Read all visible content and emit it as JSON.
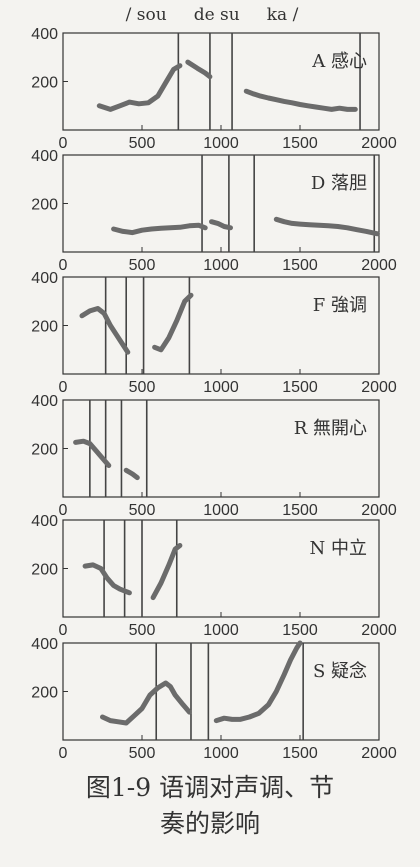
{
  "header": "/ sou     de su     ka /",
  "caption": {
    "line1": "图1-9  语调对声调、节",
    "line2": "奏的影响"
  },
  "colors": {
    "curve": "#6b6b6b",
    "axis": "#333333",
    "boundary": "#444444"
  },
  "chart_data": [
    {
      "type": "line",
      "label": "A 感心",
      "xlim": [
        0,
        2000
      ],
      "ylim": [
        0,
        400
      ],
      "yticks": [
        200,
        400
      ],
      "xticks": [
        0,
        500,
        1000,
        1500,
        2000
      ],
      "boundaries": [
        730,
        930,
        1070,
        1880
      ],
      "segments": [
        [
          [
            230,
            100
          ],
          [
            300,
            85
          ],
          [
            360,
            100
          ],
          [
            420,
            115
          ],
          [
            480,
            108
          ],
          [
            540,
            112
          ],
          [
            600,
            140
          ],
          [
            650,
            195
          ],
          [
            700,
            250
          ],
          [
            740,
            265
          ]
        ],
        [
          [
            790,
            280
          ],
          [
            850,
            255
          ],
          [
            900,
            235
          ],
          [
            930,
            220
          ]
        ],
        [
          [
            1160,
            160
          ],
          [
            1200,
            150
          ],
          [
            1250,
            140
          ],
          [
            1300,
            132
          ],
          [
            1350,
            125
          ],
          [
            1400,
            118
          ],
          [
            1450,
            112
          ],
          [
            1500,
            105
          ],
          [
            1550,
            100
          ],
          [
            1600,
            95
          ],
          [
            1650,
            90
          ],
          [
            1700,
            85
          ],
          [
            1750,
            90
          ],
          [
            1800,
            85
          ],
          [
            1850,
            85
          ]
        ]
      ]
    },
    {
      "type": "line",
      "label": "D 落胆",
      "xlim": [
        0,
        2000
      ],
      "ylim": [
        0,
        400
      ],
      "yticks": [
        200,
        400
      ],
      "xticks": [
        0,
        500,
        1000,
        1500,
        2000
      ],
      "boundaries": [
        880,
        1050,
        1210,
        1970
      ],
      "segments": [
        [
          [
            320,
            95
          ],
          [
            380,
            85
          ],
          [
            440,
            80
          ],
          [
            500,
            90
          ],
          [
            560,
            95
          ],
          [
            620,
            98
          ],
          [
            680,
            100
          ],
          [
            740,
            102
          ],
          [
            800,
            108
          ],
          [
            860,
            110
          ],
          [
            900,
            100
          ]
        ],
        [
          [
            940,
            125
          ],
          [
            980,
            118
          ],
          [
            1020,
            105
          ],
          [
            1060,
            100
          ]
        ],
        [
          [
            1350,
            135
          ],
          [
            1400,
            125
          ],
          [
            1450,
            118
          ],
          [
            1500,
            115
          ],
          [
            1560,
            112
          ],
          [
            1620,
            110
          ],
          [
            1680,
            108
          ],
          [
            1740,
            105
          ],
          [
            1800,
            100
          ],
          [
            1860,
            92
          ],
          [
            1920,
            85
          ],
          [
            1990,
            75
          ]
        ]
      ]
    },
    {
      "type": "line",
      "label": "F 強调",
      "xlim": [
        0,
        2000
      ],
      "ylim": [
        0,
        400
      ],
      "yticks": [
        200,
        400
      ],
      "xticks": [
        0,
        500,
        1000,
        1500,
        2000
      ],
      "boundaries": [
        270,
        400,
        510,
        800
      ],
      "segments": [
        [
          [
            120,
            240
          ],
          [
            170,
            260
          ],
          [
            220,
            270
          ],
          [
            260,
            250
          ],
          [
            300,
            200
          ],
          [
            340,
            160
          ],
          [
            380,
            120
          ],
          [
            410,
            90
          ]
        ],
        [
          [
            580,
            110
          ],
          [
            620,
            100
          ],
          [
            670,
            150
          ],
          [
            720,
            220
          ],
          [
            770,
            300
          ],
          [
            810,
            325
          ]
        ]
      ]
    },
    {
      "type": "line",
      "label": "R 無開心",
      "xlim": [
        0,
        2000
      ],
      "ylim": [
        0,
        400
      ],
      "yticks": [
        200,
        400
      ],
      "xticks": [
        0,
        500,
        1000,
        1500,
        2000
      ],
      "boundaries": [
        170,
        270,
        370,
        530
      ],
      "segments": [
        [
          [
            80,
            225
          ],
          [
            130,
            230
          ],
          [
            170,
            220
          ],
          [
            210,
            190
          ],
          [
            250,
            160
          ],
          [
            290,
            130
          ]
        ],
        [
          [
            400,
            110
          ],
          [
            440,
            95
          ],
          [
            470,
            80
          ]
        ]
      ]
    },
    {
      "type": "line",
      "label": "N 中立",
      "xlim": [
        0,
        2000
      ],
      "ylim": [
        0,
        400
      ],
      "yticks": [
        200,
        400
      ],
      "xticks": [
        0,
        500,
        1000,
        1500,
        2000
      ],
      "boundaries": [
        260,
        390,
        500,
        720
      ],
      "segments": [
        [
          [
            140,
            210
          ],
          [
            190,
            215
          ],
          [
            240,
            200
          ],
          [
            280,
            160
          ],
          [
            320,
            130
          ],
          [
            360,
            115
          ],
          [
            420,
            100
          ]
        ],
        [
          [
            570,
            80
          ],
          [
            620,
            140
          ],
          [
            670,
            215
          ],
          [
            710,
            280
          ],
          [
            740,
            295
          ]
        ]
      ]
    },
    {
      "type": "line",
      "label": "S 疑念",
      "xlim": [
        0,
        2000
      ],
      "ylim": [
        0,
        400
      ],
      "yticks": [
        200,
        400
      ],
      "xticks": [
        0,
        500,
        1000,
        1500,
        2000
      ],
      "boundaries": [
        590,
        810,
        920,
        1520
      ],
      "segments": [
        [
          [
            250,
            95
          ],
          [
            300,
            80
          ],
          [
            350,
            75
          ],
          [
            400,
            70
          ],
          [
            450,
            100
          ],
          [
            500,
            130
          ],
          [
            550,
            185
          ],
          [
            600,
            215
          ],
          [
            650,
            235
          ],
          [
            680,
            220
          ],
          [
            710,
            185
          ],
          [
            760,
            145
          ],
          [
            800,
            115
          ]
        ],
        [
          [
            970,
            80
          ],
          [
            1020,
            90
          ],
          [
            1070,
            85
          ],
          [
            1120,
            85
          ],
          [
            1180,
            95
          ],
          [
            1240,
            110
          ],
          [
            1300,
            145
          ],
          [
            1350,
            200
          ],
          [
            1400,
            270
          ],
          [
            1440,
            330
          ],
          [
            1480,
            380
          ],
          [
            1500,
            400
          ]
        ]
      ]
    }
  ]
}
